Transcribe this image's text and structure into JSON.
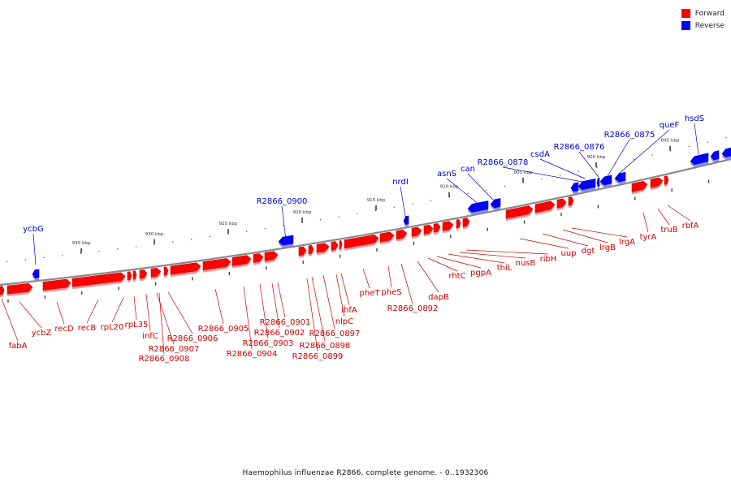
{
  "legend": {
    "forward_label": "Forward",
    "reverse_label": "Reverse",
    "forward_color": "#ff0000",
    "reverse_color": "#0000ff"
  },
  "caption": "Haemophilus influenzae R2866, complete genome. - 0..1932306",
  "colors": {
    "forward": "#ff0000",
    "reverse": "#0000ff",
    "label_forward": "#cc0000",
    "label_reverse": "#0000cc",
    "axis": "#888888"
  },
  "ticks": [
    "935 kbp",
    "930 kbp",
    "925 kbp",
    "920 kbp",
    "915 kbp",
    "910 kbp",
    "905 kbp",
    "900 kbp",
    "895 kbp"
  ],
  "reverse_genes": [
    "ycbG",
    "R2866_0900",
    "nrdI",
    "asnS",
    "can",
    "R2866_0878",
    "csdA",
    "R2866_0876",
    "R2866_0875",
    "queF",
    "hsdS"
  ],
  "forward_genes": [
    "fabA",
    "ycbZ",
    "recD",
    "recB",
    "rpL20",
    "rpL35",
    "infC",
    "R2866_0907",
    "R2866_0908",
    "R2866_0906",
    "R2866_0905",
    "R2866_0904",
    "R2866_0903",
    "R2866_0902",
    "R2866_0901",
    "R2866_0899",
    "R2866_0898",
    "R2866_0897",
    "nlpC",
    "ihfA",
    "pheT",
    "pheS",
    "R2866_0892",
    "dapB",
    "rhtC",
    "pgpA",
    "thiL",
    "nusB",
    "ribH",
    "uup",
    "dgt",
    "lrgB",
    "lrgA",
    "tyrA",
    "truB",
    "rbfA"
  ]
}
